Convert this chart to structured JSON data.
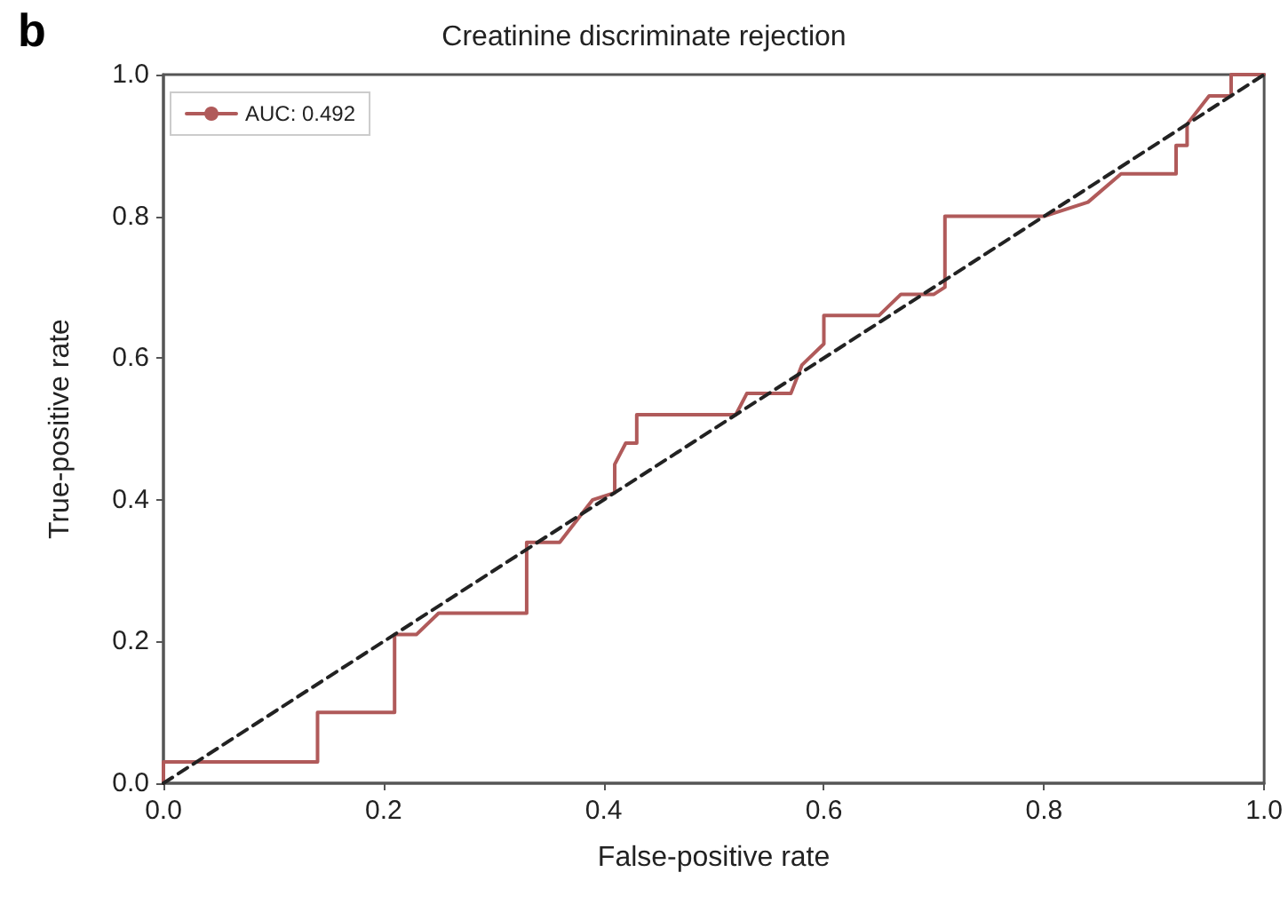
{
  "chart_data": {
    "type": "line",
    "title": "Creatinine discriminate rejection",
    "xlabel": "False-positive rate",
    "ylabel": "True-positive rate",
    "annotations": [
      "b"
    ],
    "xlim": [
      0,
      1
    ],
    "ylim": [
      0,
      1
    ],
    "xticks": [
      {
        "value": 0,
        "label": "0.0"
      },
      {
        "value": 0.2,
        "label": "0.2"
      },
      {
        "value": 0.4,
        "label": "0.4"
      },
      {
        "value": 0.6,
        "label": "0.6"
      },
      {
        "value": 0.8,
        "label": "0.8"
      },
      {
        "value": 1,
        "label": "1.0"
      }
    ],
    "yticks": [
      {
        "value": 0,
        "label": "0.0"
      },
      {
        "value": 0.2,
        "label": "0.2"
      },
      {
        "value": 0.4,
        "label": "0.4"
      },
      {
        "value": 0.6,
        "label": "0.6"
      },
      {
        "value": 0.8,
        "label": "0.8"
      },
      {
        "value": 1,
        "label": "1.0"
      }
    ],
    "grid": false,
    "legend": "top left",
    "marker": "none",
    "series": [
      {
        "name": "AUC: 0.492",
        "color": "#b05a5a",
        "line_style": "solid",
        "x": [
          0,
          0,
          0.14,
          0.14,
          0.21,
          0.21,
          0.23,
          0.25,
          0.33,
          0.33,
          0.36,
          0.37,
          0.39,
          0.41,
          0.41,
          0.42,
          0.43,
          0.43,
          0.52,
          0.53,
          0.57,
          0.58,
          0.6,
          0.6,
          0.65,
          0.67,
          0.7,
          0.71,
          0.71,
          0.8,
          0.84,
          0.87,
          0.92,
          0.92,
          0.93,
          0.93,
          0.95,
          0.97,
          0.97,
          1
        ],
        "values": [
          0,
          0.03,
          0.03,
          0.1,
          0.1,
          0.21,
          0.21,
          0.24,
          0.24,
          0.34,
          0.34,
          0.36,
          0.4,
          0.41,
          0.45,
          0.48,
          0.48,
          0.52,
          0.52,
          0.55,
          0.55,
          0.59,
          0.62,
          0.66,
          0.66,
          0.69,
          0.69,
          0.7,
          0.8,
          0.8,
          0.82,
          0.86,
          0.86,
          0.9,
          0.9,
          0.93,
          0.97,
          0.97,
          1,
          1
        ]
      },
      {
        "color": "#222222",
        "line_style": "dashed",
        "x": [
          0,
          1
        ],
        "values": [
          0,
          1
        ]
      }
    ]
  }
}
